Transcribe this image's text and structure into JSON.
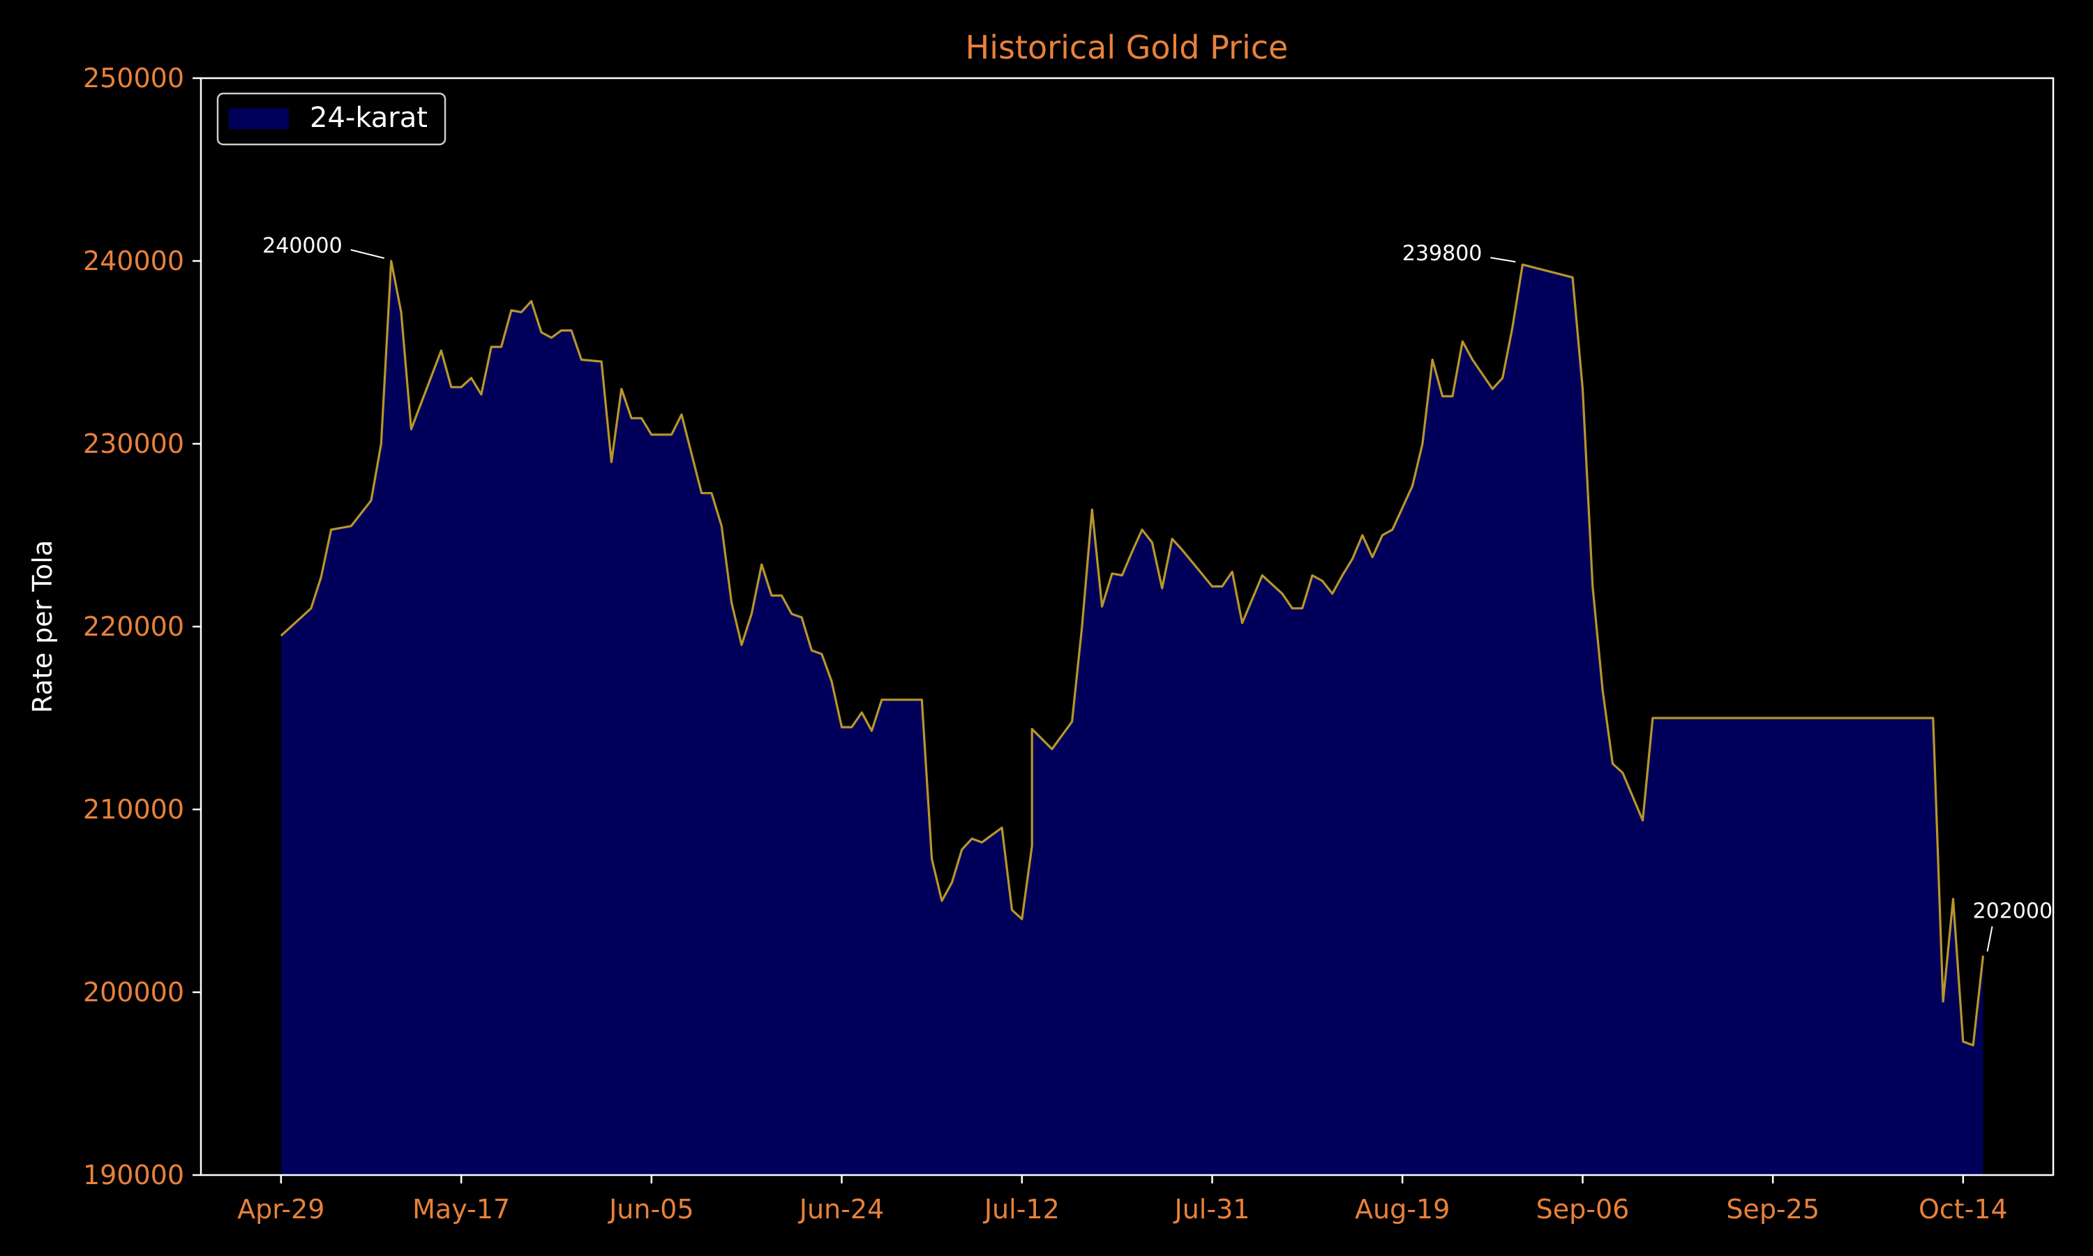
{
  "colors": {
    "background": "#000000",
    "accent_text": "#e8813c",
    "line": "#b8962a",
    "fill": "#00005a",
    "axes": "#ffffff",
    "annotation": "#ffffff"
  },
  "chart_data": {
    "type": "area",
    "title": "Historical Gold Price",
    "xlabel": "",
    "ylabel": "Rate per Tola",
    "ylim": [
      190000,
      250000
    ],
    "yticks": [
      190000,
      200000,
      210000,
      220000,
      230000,
      240000,
      250000
    ],
    "xlim": [
      "2024-04-21",
      "2024-10-23"
    ],
    "xticks": [
      {
        "date": "2024-04-29",
        "label": "Apr-29"
      },
      {
        "date": "2024-05-17",
        "label": "May-17"
      },
      {
        "date": "2024-06-05",
        "label": "Jun-05"
      },
      {
        "date": "2024-06-24",
        "label": "Jun-24"
      },
      {
        "date": "2024-07-12",
        "label": "Jul-12"
      },
      {
        "date": "2024-07-31",
        "label": "Jul-31"
      },
      {
        "date": "2024-08-19",
        "label": "Aug-19"
      },
      {
        "date": "2024-09-06",
        "label": "Sep-06"
      },
      {
        "date": "2024-09-25",
        "label": "Sep-25"
      },
      {
        "date": "2024-10-14",
        "label": "Oct-14"
      }
    ],
    "legend": {
      "position": "top-left",
      "entries": [
        "24-karat"
      ]
    },
    "grid": false,
    "series": [
      {
        "name": "24-karat",
        "points": [
          [
            "2024-04-29",
            219500
          ],
          [
            "2024-05-02",
            221000
          ],
          [
            "2024-05-03",
            222700
          ],
          [
            "2024-05-04",
            225300
          ],
          [
            "2024-05-06",
            225500
          ],
          [
            "2024-05-08",
            226900
          ],
          [
            "2024-05-09",
            230000
          ],
          [
            "2024-05-10",
            240000
          ],
          [
            "2024-05-11",
            237200
          ],
          [
            "2024-05-12",
            230800
          ],
          [
            "2024-05-15",
            235100
          ],
          [
            "2024-05-16",
            233100
          ],
          [
            "2024-05-17",
            233100
          ],
          [
            "2024-05-18",
            233600
          ],
          [
            "2024-05-19",
            232700
          ],
          [
            "2024-05-20",
            235300
          ],
          [
            "2024-05-21",
            235300
          ],
          [
            "2024-05-22",
            237300
          ],
          [
            "2024-05-23",
            237200
          ],
          [
            "2024-05-24",
            237800
          ],
          [
            "2024-05-25",
            236100
          ],
          [
            "2024-05-26",
            235800
          ],
          [
            "2024-05-27",
            236200
          ],
          [
            "2024-05-28",
            236200
          ],
          [
            "2024-05-29",
            234600
          ],
          [
            "2024-05-31",
            234500
          ],
          [
            "2024-06-01",
            229000
          ],
          [
            "2024-06-02",
            233000
          ],
          [
            "2024-06-03",
            231400
          ],
          [
            "2024-06-04",
            231400
          ],
          [
            "2024-06-05",
            230500
          ],
          [
            "2024-06-07",
            230500
          ],
          [
            "2024-06-08",
            231600
          ],
          [
            "2024-06-10",
            227300
          ],
          [
            "2024-06-11",
            227300
          ],
          [
            "2024-06-12",
            225500
          ],
          [
            "2024-06-13",
            221300
          ],
          [
            "2024-06-14",
            219000
          ],
          [
            "2024-06-15",
            220700
          ],
          [
            "2024-06-16",
            223400
          ],
          [
            "2024-06-17",
            221700
          ],
          [
            "2024-06-18",
            221700
          ],
          [
            "2024-06-19",
            220700
          ],
          [
            "2024-06-20",
            220500
          ],
          [
            "2024-06-21",
            218700
          ],
          [
            "2024-06-22",
            218500
          ],
          [
            "2024-06-23",
            217000
          ],
          [
            "2024-06-24",
            214500
          ],
          [
            "2024-06-25",
            214500
          ],
          [
            "2024-06-26",
            215300
          ],
          [
            "2024-06-27",
            214300
          ],
          [
            "2024-06-28",
            216000
          ],
          [
            "2024-07-02",
            216000
          ],
          [
            "2024-07-03",
            207300
          ],
          [
            "2024-07-04",
            205000
          ],
          [
            "2024-07-05",
            206000
          ],
          [
            "2024-07-06",
            207800
          ],
          [
            "2024-07-07",
            208400
          ],
          [
            "2024-07-08",
            208200
          ],
          [
            "2024-07-10",
            209000
          ],
          [
            "2024-07-11",
            204500
          ],
          [
            "2024-07-12",
            204000
          ],
          [
            "2024-07-13",
            208000
          ],
          [
            "2024-07-13",
            214400
          ],
          [
            "2024-07-15",
            213300
          ],
          [
            "2024-07-17",
            214800
          ],
          [
            "2024-07-18",
            220000
          ],
          [
            "2024-07-19",
            226400
          ],
          [
            "2024-07-20",
            221100
          ],
          [
            "2024-07-21",
            222900
          ],
          [
            "2024-07-22",
            222800
          ],
          [
            "2024-07-23",
            224100
          ],
          [
            "2024-07-24",
            225300
          ],
          [
            "2024-07-25",
            224600
          ],
          [
            "2024-07-26",
            222100
          ],
          [
            "2024-07-27",
            224800
          ],
          [
            "2024-07-28",
            224200
          ],
          [
            "2024-07-31",
            222200
          ],
          [
            "2024-08-01",
            222200
          ],
          [
            "2024-08-02",
            223000
          ],
          [
            "2024-08-03",
            220200
          ],
          [
            "2024-08-05",
            222800
          ],
          [
            "2024-08-07",
            221800
          ],
          [
            "2024-08-08",
            221000
          ],
          [
            "2024-08-09",
            221000
          ],
          [
            "2024-08-10",
            222800
          ],
          [
            "2024-08-11",
            222500
          ],
          [
            "2024-08-12",
            221800
          ],
          [
            "2024-08-13",
            222800
          ],
          [
            "2024-08-14",
            223700
          ],
          [
            "2024-08-15",
            225000
          ],
          [
            "2024-08-16",
            223800
          ],
          [
            "2024-08-17",
            225000
          ],
          [
            "2024-08-18",
            225300
          ],
          [
            "2024-08-20",
            227700
          ],
          [
            "2024-08-21",
            230000
          ],
          [
            "2024-08-22",
            234600
          ],
          [
            "2024-08-23",
            232600
          ],
          [
            "2024-08-24",
            232600
          ],
          [
            "2024-08-25",
            235600
          ],
          [
            "2024-08-26",
            234600
          ],
          [
            "2024-08-28",
            233000
          ],
          [
            "2024-08-29",
            233600
          ],
          [
            "2024-08-30",
            236400
          ],
          [
            "2024-08-31",
            239800
          ],
          [
            "2024-09-05",
            239100
          ],
          [
            "2024-09-06",
            233000
          ],
          [
            "2024-09-07",
            222200
          ],
          [
            "2024-09-08",
            216500
          ],
          [
            "2024-09-09",
            212500
          ],
          [
            "2024-09-10",
            212000
          ],
          [
            "2024-09-12",
            209400
          ],
          [
            "2024-09-13",
            215000
          ],
          [
            "2024-10-11",
            215000
          ],
          [
            "2024-10-12",
            199500
          ],
          [
            "2024-10-13",
            205100
          ],
          [
            "2024-10-14",
            197300
          ],
          [
            "2024-10-15",
            197100
          ],
          [
            "2024-10-16",
            202000
          ]
        ]
      }
    ],
    "annotations": [
      {
        "date": "2024-05-10",
        "value": 240000,
        "text": "240000"
      },
      {
        "date": "2024-08-31",
        "value": 239800,
        "text": "239800"
      },
      {
        "date": "2024-10-16",
        "value": 202000,
        "text": "202000"
      }
    ]
  }
}
